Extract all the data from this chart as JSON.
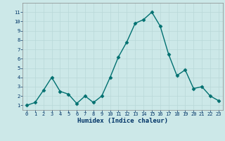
{
  "x": [
    0,
    1,
    2,
    3,
    4,
    5,
    6,
    7,
    8,
    9,
    10,
    11,
    12,
    13,
    14,
    15,
    16,
    17,
    18,
    19,
    20,
    21,
    22,
    23
  ],
  "y": [
    1.0,
    1.3,
    2.6,
    4.0,
    2.5,
    2.2,
    1.2,
    2.0,
    1.3,
    2.0,
    4.0,
    6.2,
    7.8,
    9.8,
    10.2,
    11.0,
    9.5,
    6.5,
    4.2,
    4.8,
    2.8,
    3.0,
    2.0,
    1.5
  ],
  "xlabel": "Humidex (Indice chaleur)",
  "ylim": [
    0.5,
    12
  ],
  "xlim": [
    -0.5,
    23.5
  ],
  "yticks": [
    1,
    2,
    3,
    4,
    5,
    6,
    7,
    8,
    9,
    10,
    11
  ],
  "xticks": [
    0,
    1,
    2,
    3,
    4,
    5,
    6,
    7,
    8,
    9,
    10,
    11,
    12,
    13,
    14,
    15,
    16,
    17,
    18,
    19,
    20,
    21,
    22,
    23
  ],
  "line_color": "#007070",
  "marker_color": "#007070",
  "bg_color": "#cce8e8",
  "grid_color": "#b8d8d8",
  "xlabel_color": "#003366",
  "tick_color": "#003366",
  "axis_bg": "#cce8e8",
  "tick_fontsize": 5.0,
  "xlabel_fontsize": 6.5,
  "ylabel_fontsize": 6.0,
  "linewidth": 1.0,
  "markersize": 2.5
}
